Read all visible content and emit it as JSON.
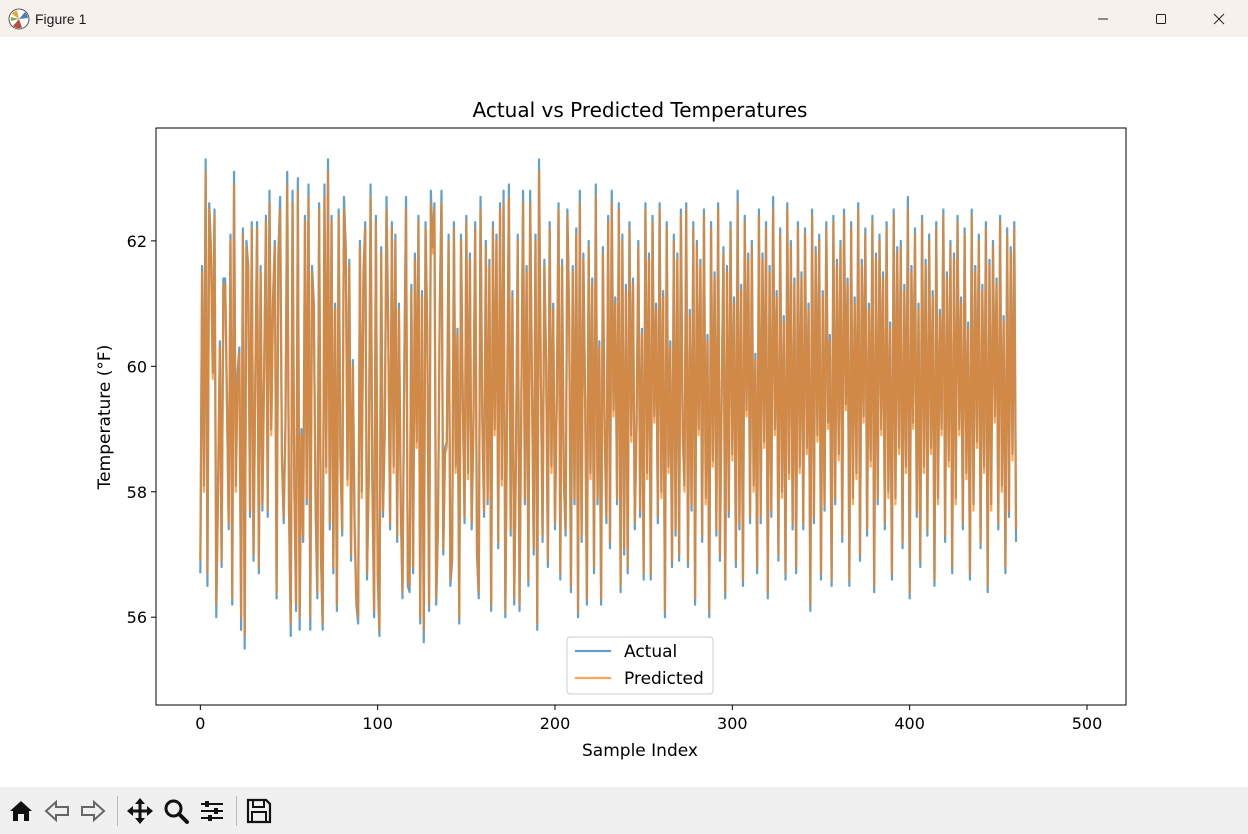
{
  "window": {
    "title": "Figure 1",
    "controls": [
      "minimize-icon",
      "maximize-icon",
      "close-icon"
    ]
  },
  "toolbar": {
    "buttons": [
      "home-icon",
      "back-icon",
      "forward-icon",
      "pan-icon",
      "zoom-icon",
      "configure-subplots-icon",
      "save-icon"
    ]
  },
  "chart_data": {
    "type": "line",
    "title": "Actual vs Predicted Temperatures",
    "xlabel": "Sample Index",
    "ylabel": "Temperature (°F)",
    "xlim": [
      -25,
      522
    ],
    "ylim": [
      54.6,
      63.8
    ],
    "xticks": [
      0,
      100,
      200,
      300,
      400,
      500
    ],
    "yticks": [
      56,
      58,
      60,
      62
    ],
    "grid": false,
    "legend_position": "lower center",
    "series": [
      {
        "name": "Actual",
        "color": "#1f77b4",
        "opacity": 0.7,
        "values": [
          56.7,
          61.6,
          58.1,
          63.3,
          56.5,
          62.6,
          61.9,
          59.9,
          62.5,
          56.0,
          58.1,
          60.4,
          56.8,
          61.4,
          61.4,
          59.5,
          57.4,
          62.1,
          56.2,
          63.1,
          58.1,
          59.9,
          60.3,
          55.8,
          62.2,
          55.5,
          62.0,
          61.6,
          57.6,
          62.3,
          56.9,
          59.8,
          62.3,
          56.7,
          61.6,
          57.7,
          60.0,
          62.4,
          57.6,
          62.8,
          59.0,
          61.1,
          62.0,
          56.3,
          61.8,
          62.7,
          58.6,
          57.5,
          59.1,
          63.1,
          57.7,
          55.7,
          62.8,
          58.1,
          56.1,
          63.0,
          55.8,
          59.0,
          57.2,
          62.4,
          57.8,
          62.9,
          55.8,
          61.6,
          61.0,
          57.7,
          56.3,
          62.6,
          57.0,
          55.8,
          62.9,
          58.4,
          63.3,
          57.4,
          62.4,
          56.7,
          61.0,
          56.1,
          62.5,
          58.6,
          57.3,
          62.7,
          61.9,
          58.2,
          61.7,
          56.9,
          60.1,
          57.4,
          56.2,
          55.9,
          62.0,
          58.0,
          61.5,
          62.3,
          56.6,
          58.3,
          62.9,
          58.2,
          56.0,
          62.4,
          56.7,
          55.7,
          61.9,
          57.6,
          59.0,
          62.7,
          60.5,
          57.4,
          62.3,
          58.4,
          62.1,
          57.2,
          61.0,
          57.8,
          56.3,
          60.0,
          62.7,
          56.5,
          56.4,
          61.3,
          56.7,
          61.8,
          58.8,
          62.4,
          55.9,
          61.2,
          55.6,
          62.3,
          60.5,
          56.1,
          62.8,
          61.9,
          62.6,
          56.2,
          57.4,
          60.9,
          62.8,
          57.0,
          58.7,
          58.8,
          62.1,
          56.5,
          56.9,
          62.3,
          58.4,
          60.6,
          55.9,
          62.1,
          59.5,
          57.5,
          62.4,
          58.3,
          61.8,
          57.4,
          59.1,
          62.3,
          57.0,
          56.3,
          62.7,
          59.2,
          57.6,
          62.0,
          57.8,
          61.7,
          56.1,
          62.3,
          59.0,
          62.1,
          57.1,
          62.6,
          58.2,
          62.8,
          56.0,
          59.4,
          62.9,
          57.3,
          61.2,
          56.2,
          58.6,
          62.1,
          56.1,
          59.4,
          62.8,
          57.8,
          61.6,
          56.5,
          62.8,
          59.8,
          57.0,
          62.1,
          55.8,
          63.3,
          59.9,
          57.2,
          61.7,
          60.1,
          56.8,
          62.3,
          58.4,
          61.0,
          57.4,
          59.5,
          62.6,
          56.6,
          61.7,
          58.2,
          57.3,
          62.5,
          60.8,
          56.4,
          61.6,
          57.8,
          62.2,
          56.0,
          62.8,
          57.2,
          61.8,
          59.5,
          56.2,
          62.0,
          58.3,
          61.4,
          56.7,
          62.9,
          57.8,
          60.4,
          56.2,
          61.9,
          59.0,
          57.5,
          62.4,
          57.1,
          62.8,
          59.3,
          61.1,
          57.8,
          62.6,
          56.4,
          62.1,
          57.0,
          61.3,
          56.7,
          62.3,
          58.9,
          61.4,
          57.4,
          59.1,
          62.0,
          57.6,
          60.6,
          56.6,
          62.6,
          58.3,
          61.8,
          56.6,
          62.4,
          59.2,
          61.0,
          57.5,
          62.6,
          58.0,
          61.2,
          56.0,
          62.3,
          58.4,
          60.4,
          56.8,
          62.1,
          57.3,
          61.8,
          56.9,
          62.5,
          59.0,
          58.1,
          62.6,
          56.8,
          60.9,
          57.7,
          62.3,
          56.2,
          62.0,
          59.0,
          61.7,
          57.2,
          62.5,
          57.9,
          60.5,
          56.0,
          62.3,
          58.5,
          61.5,
          57.3,
          62.6,
          56.9,
          59.6,
          61.9,
          56.3,
          61.6,
          57.6,
          62.3,
          58.6,
          61.1,
          56.8,
          62.8,
          57.4,
          61.3,
          56.5,
          62.4,
          59.3,
          61.8,
          57.5,
          62.0,
          58.1,
          60.2,
          56.7,
          62.5,
          57.5,
          61.8,
          58.8,
          62.3,
          56.3,
          61.6,
          57.6,
          62.7,
          59.0,
          61.2,
          56.9,
          62.2,
          58.0,
          60.8,
          56.6,
          62.6,
          58.3,
          62.0,
          57.4,
          61.4,
          56.7,
          62.3,
          58.4,
          61.5,
          57.4,
          62.2,
          58.7,
          61.0,
          56.1,
          62.5,
          57.5,
          61.9,
          58.9,
          62.1,
          56.6,
          61.2,
          57.7,
          62.3,
          59.1,
          60.5,
          56.5,
          62.4,
          57.8,
          61.7,
          58.6,
          62.0,
          57.2,
          62.5,
          59.4,
          61.4,
          56.5,
          62.3,
          57.9,
          61.1,
          58.3,
          62.6,
          56.9,
          61.7,
          59.2,
          62.2,
          57.3,
          61.0,
          58.5,
          62.4,
          56.4,
          61.8,
          57.8,
          62.1,
          59.0,
          61.5,
          57.4,
          62.3,
          58.0,
          60.7,
          56.6,
          62.5,
          57.9,
          61.9,
          58.7,
          62.0,
          57.1,
          61.3,
          58.4,
          62.7,
          56.3,
          61.6,
          59.1,
          62.2,
          57.6,
          61.0,
          56.8,
          62.4,
          58.4,
          61.7,
          57.3,
          62.1,
          58.7,
          61.2,
          56.5,
          62.3,
          57.9,
          60.9,
          59.0,
          62.5,
          57.2,
          61.5,
          58.5,
          62.0,
          56.7,
          61.8,
          57.9,
          62.4,
          59.0,
          61.1,
          57.4,
          62.2,
          58.3,
          60.7,
          56.6,
          62.5,
          57.8,
          61.6,
          58.8,
          62.1,
          57.1,
          61.3,
          58.4,
          62.3,
          56.4,
          61.7,
          57.8,
          62.0,
          59.2,
          61.4,
          57.4,
          62.4,
          58.1,
          60.8,
          56.7,
          62.2,
          57.6,
          61.9,
          58.6,
          62.3,
          57.2
        ]
      },
      {
        "name": "Predicted",
        "color": "#ff7f0e",
        "opacity": 0.7,
        "values": [
          56.9,
          61.5,
          58.0,
          63.1,
          56.7,
          62.5,
          61.8,
          59.8,
          62.4,
          56.2,
          58.0,
          60.3,
          56.9,
          61.3,
          61.3,
          59.4,
          57.5,
          62.0,
          56.3,
          62.9,
          58.0,
          59.7,
          60.2,
          56.0,
          62.1,
          55.7,
          61.9,
          61.5,
          57.7,
          62.2,
          57.0,
          59.7,
          62.2,
          56.8,
          61.5,
          57.8,
          59.9,
          62.3,
          57.7,
          62.6,
          58.9,
          61.0,
          61.9,
          56.4,
          61.7,
          62.5,
          58.5,
          57.6,
          59.0,
          62.9,
          57.8,
          55.9,
          62.6,
          58.0,
          56.2,
          62.8,
          56.0,
          58.9,
          57.3,
          62.3,
          57.9,
          62.7,
          56.0,
          61.5,
          60.9,
          57.8,
          56.4,
          62.5,
          57.1,
          55.9,
          62.7,
          58.3,
          63.1,
          57.5,
          62.3,
          56.8,
          60.9,
          56.2,
          62.4,
          58.5,
          57.4,
          62.5,
          61.8,
          58.1,
          61.6,
          57.0,
          60.0,
          57.5,
          56.3,
          56.0,
          61.9,
          57.9,
          61.4,
          62.2,
          56.7,
          58.2,
          62.7,
          58.1,
          56.1,
          62.3,
          56.8,
          55.8,
          61.8,
          57.7,
          58.9,
          62.5,
          60.4,
          57.5,
          62.2,
          58.3,
          62.0,
          57.3,
          60.9,
          57.9,
          56.4,
          59.9,
          62.5,
          56.6,
          56.5,
          61.2,
          56.8,
          61.7,
          58.7,
          62.3,
          56.0,
          61.1,
          55.8,
          62.2,
          60.4,
          56.2,
          62.6,
          61.8,
          62.5,
          56.3,
          57.5,
          60.8,
          62.6,
          57.1,
          58.6,
          58.7,
          62.0,
          56.6,
          57.0,
          62.2,
          58.3,
          60.5,
          56.0,
          62.0,
          59.4,
          57.6,
          62.3,
          58.2,
          61.7,
          57.5,
          59.0,
          62.2,
          57.1,
          56.4,
          62.5,
          59.1,
          57.7,
          61.9,
          57.9,
          61.6,
          56.2,
          62.2,
          58.9,
          62.0,
          57.2,
          62.5,
          58.1,
          62.6,
          56.1,
          59.3,
          62.7,
          57.4,
          61.1,
          56.3,
          58.5,
          62.0,
          56.2,
          59.3,
          62.6,
          57.9,
          61.5,
          56.6,
          62.6,
          59.7,
          57.1,
          62.0,
          55.9,
          63.1,
          59.8,
          57.3,
          61.6,
          60.0,
          56.9,
          62.2,
          58.3,
          60.9,
          57.5,
          59.4,
          62.5,
          56.7,
          61.6,
          58.1,
          57.4,
          62.4,
          60.7,
          56.5,
          61.5,
          57.9,
          62.1,
          56.1,
          62.6,
          57.3,
          61.7,
          59.4,
          56.3,
          61.9,
          58.2,
          61.3,
          56.8,
          62.7,
          57.9,
          60.3,
          56.3,
          61.8,
          58.9,
          57.6,
          62.3,
          57.2,
          62.6,
          59.2,
          61.0,
          57.9,
          62.5,
          56.5,
          62.0,
          57.1,
          61.2,
          56.8,
          62.2,
          58.8,
          61.3,
          57.5,
          59.0,
          61.9,
          57.7,
          60.5,
          56.7,
          62.5,
          58.2,
          61.7,
          56.7,
          62.3,
          59.1,
          60.9,
          57.6,
          62.5,
          57.9,
          61.1,
          56.1,
          62.2,
          58.3,
          60.3,
          56.9,
          62.0,
          57.4,
          61.7,
          57.0,
          62.4,
          58.9,
          58.0,
          62.5,
          56.9,
          60.8,
          57.8,
          62.2,
          56.3,
          61.9,
          58.9,
          61.6,
          57.3,
          62.4,
          57.8,
          60.4,
          56.1,
          62.2,
          58.4,
          61.4,
          57.4,
          62.5,
          57.0,
          59.5,
          61.8,
          56.4,
          61.5,
          57.7,
          62.2,
          58.5,
          61.0,
          56.9,
          62.6,
          57.5,
          61.2,
          56.6,
          62.3,
          59.2,
          61.7,
          57.6,
          61.9,
          58.0,
          60.1,
          56.8,
          62.4,
          57.6,
          61.7,
          58.7,
          62.2,
          56.4,
          61.5,
          57.7,
          62.5,
          58.9,
          61.1,
          57.0,
          62.1,
          57.9,
          60.7,
          56.7,
          62.5,
          58.2,
          61.9,
          57.5,
          61.3,
          56.8,
          62.2,
          58.3,
          61.4,
          57.5,
          62.1,
          58.6,
          60.9,
          56.2,
          62.4,
          57.6,
          61.8,
          58.8,
          62.0,
          56.7,
          61.1,
          57.8,
          62.2,
          59.0,
          60.4,
          56.6,
          62.3,
          57.9,
          61.6,
          58.5,
          61.9,
          57.3,
          62.4,
          59.3,
          61.3,
          56.6,
          62.2,
          57.8,
          61.0,
          58.2,
          62.5,
          57.0,
          61.6,
          59.1,
          62.1,
          57.4,
          60.9,
          58.4,
          62.3,
          56.5,
          61.7,
          57.9,
          62.0,
          58.9,
          61.4,
          57.5,
          62.2,
          57.9,
          60.6,
          56.7,
          62.4,
          57.8,
          61.8,
          58.6,
          61.9,
          57.2,
          61.2,
          58.3,
          62.5,
          56.4,
          61.5,
          59.0,
          62.1,
          57.7,
          60.9,
          56.9,
          62.3,
          58.3,
          61.6,
          57.4,
          62.0,
          58.6,
          61.1,
          56.6,
          62.2,
          57.8,
          60.8,
          58.9,
          62.4,
          57.3,
          61.4,
          58.4,
          61.9,
          56.8,
          61.7,
          57.8,
          62.3,
          58.9,
          61.0,
          57.5,
          62.1,
          58.2,
          60.6,
          56.7,
          62.4,
          57.7,
          61.5,
          58.7,
          62.0,
          57.2,
          61.2,
          58.3,
          62.2,
          56.5,
          61.6,
          57.7,
          61.9,
          59.1,
          61.3,
          57.5,
          62.3,
          58.0,
          60.7,
          56.8,
          62.1,
          57.7,
          61.8,
          58.5,
          62.2,
          57.4
        ]
      }
    ]
  }
}
